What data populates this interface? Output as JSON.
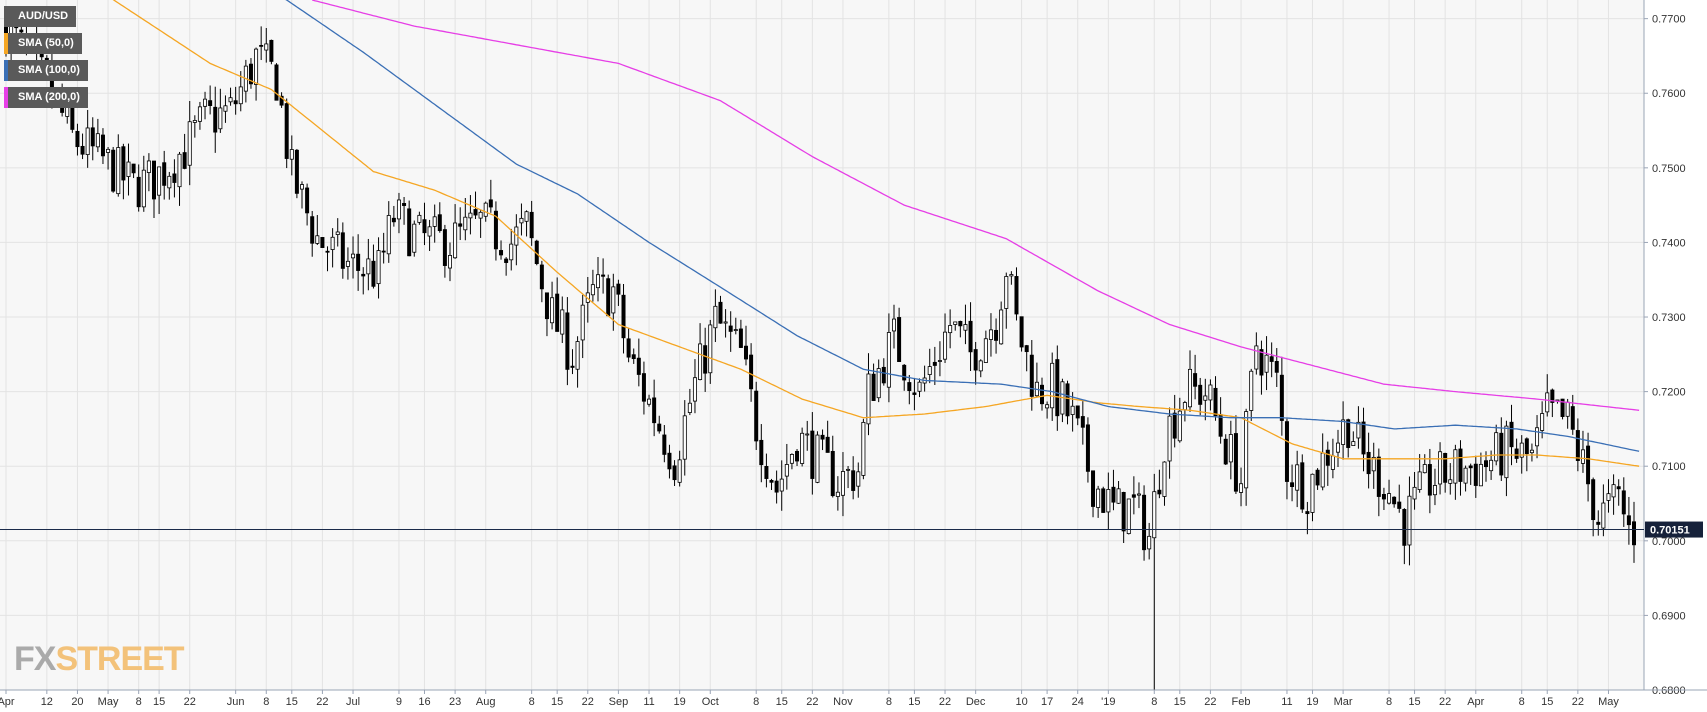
{
  "pair": "AUD/USD",
  "logo": {
    "part1": "FX",
    "part2": "STREET"
  },
  "legend": [
    {
      "label": "SMA (50,0)",
      "color": "#f5a623"
    },
    {
      "label": "SMA (100,0)",
      "color": "#3a6fb5"
    },
    {
      "label": "SMA (200,0)",
      "color": "#e63ee6"
    }
  ],
  "colors": {
    "background": "#f7f7f7",
    "grid": "#e3e3e3",
    "bull": "#ffffff",
    "bear": "#000000",
    "price_line": "#1a2a4a",
    "price_tag_bg": "#16213a"
  },
  "chart_data": {
    "type": "candlestick",
    "ylim": [
      0.68,
      0.7725
    ],
    "y_ticks": [
      0.77,
      0.76,
      0.75,
      0.74,
      0.73,
      0.72,
      0.71,
      0.7,
      0.69,
      0.68
    ],
    "y_tick_labels": [
      "0.7700",
      "0.7600",
      "0.7500",
      "0.7400",
      "0.7300",
      "0.7200",
      "0.7100",
      "0.7000",
      "0.6900",
      "0.6800"
    ],
    "current_price": 0.70151,
    "current_price_label": "0.70151",
    "x_labels": [
      "Apr",
      "12",
      "20",
      "May",
      "8",
      "15",
      "22",
      "Jun",
      "8",
      "15",
      "22",
      "Jul",
      "9",
      "16",
      "23",
      "Aug",
      "8",
      "15",
      "22",
      "Sep",
      "11",
      "19",
      "Oct",
      "8",
      "15",
      "22",
      "Nov",
      "8",
      "15",
      "22",
      "Dec",
      "10",
      "17",
      "24",
      "'19",
      "8",
      "15",
      "22",
      "Feb",
      "11",
      "19",
      "Mar",
      "8",
      "15",
      "22",
      "Apr",
      "8",
      "15",
      "22",
      "May"
    ],
    "x_label_bars": [
      0,
      8,
      14,
      20,
      26,
      30,
      36,
      45,
      51,
      56,
      62,
      68,
      77,
      82,
      88,
      94,
      103,
      108,
      114,
      120,
      126,
      132,
      138,
      147,
      152,
      158,
      164,
      173,
      178,
      184,
      190,
      199,
      204,
      210,
      216,
      225,
      230,
      236,
      242,
      251,
      256,
      262,
      271,
      276,
      282,
      288,
      297,
      302,
      308,
      314
    ],
    "n_bars": 320,
    "price_path": [
      [
        0,
        0.77
      ],
      [
        4,
        0.766
      ],
      [
        10,
        0.76
      ],
      [
        14,
        0.754
      ],
      [
        20,
        0.751
      ],
      [
        26,
        0.7475
      ],
      [
        30,
        0.7485
      ],
      [
        36,
        0.7525
      ],
      [
        40,
        0.7565
      ],
      [
        45,
        0.7575
      ],
      [
        50,
        0.7648
      ],
      [
        54,
        0.762
      ],
      [
        57,
        0.749
      ],
      [
        62,
        0.7405
      ],
      [
        68,
        0.737
      ],
      [
        74,
        0.736
      ],
      [
        77,
        0.7435
      ],
      [
        82,
        0.7405
      ],
      [
        88,
        0.74
      ],
      [
        94,
        0.7425
      ],
      [
        100,
        0.74
      ],
      [
        103,
        0.742
      ],
      [
        108,
        0.73
      ],
      [
        112,
        0.725
      ],
      [
        116,
        0.733
      ],
      [
        120,
        0.7335
      ],
      [
        123,
        0.7245
      ],
      [
        128,
        0.717
      ],
      [
        132,
        0.711
      ],
      [
        136,
        0.721
      ],
      [
        140,
        0.7295
      ],
      [
        145,
        0.725
      ],
      [
        148,
        0.7155
      ],
      [
        152,
        0.707
      ],
      [
        156,
        0.714
      ],
      [
        160,
        0.711
      ],
      [
        164,
        0.708
      ],
      [
        168,
        0.7095
      ],
      [
        170,
        0.72
      ],
      [
        175,
        0.727
      ],
      [
        180,
        0.72
      ],
      [
        186,
        0.729
      ],
      [
        190,
        0.725
      ],
      [
        195,
        0.73
      ],
      [
        197,
        0.737
      ],
      [
        199,
        0.729
      ],
      [
        203,
        0.72
      ],
      [
        206,
        0.7205
      ],
      [
        210,
        0.716
      ],
      [
        214,
        0.708
      ],
      [
        218,
        0.704
      ],
      [
        222,
        0.7045
      ],
      [
        225,
        0.7005
      ],
      [
        228,
        0.714
      ],
      [
        232,
        0.72
      ],
      [
        236,
        0.72
      ],
      [
        240,
        0.713
      ],
      [
        243,
        0.708
      ],
      [
        246,
        0.7265
      ],
      [
        250,
        0.721
      ],
      [
        252,
        0.71
      ],
      [
        256,
        0.707
      ],
      [
        260,
        0.712
      ],
      [
        264,
        0.716
      ],
      [
        267,
        0.711
      ],
      [
        271,
        0.708
      ],
      [
        275,
        0.7025
      ],
      [
        280,
        0.708
      ],
      [
        285,
        0.7095
      ],
      [
        290,
        0.71
      ],
      [
        295,
        0.712
      ],
      [
        300,
        0.711
      ],
      [
        303,
        0.717
      ],
      [
        307,
        0.716
      ],
      [
        310,
        0.71
      ],
      [
        313,
        0.703
      ],
      [
        317,
        0.7055
      ],
      [
        319,
        0.7015
      ]
    ],
    "spike_low": {
      "bar": 225,
      "price": 0.68
    },
    "sma_50_path": [
      [
        0,
        0.778
      ],
      [
        20,
        0.773
      ],
      [
        40,
        0.764
      ],
      [
        52,
        0.7605
      ],
      [
        62,
        0.755
      ],
      [
        72,
        0.7495
      ],
      [
        84,
        0.747
      ],
      [
        96,
        0.7435
      ],
      [
        108,
        0.736
      ],
      [
        120,
        0.729
      ],
      [
        132,
        0.726
      ],
      [
        144,
        0.723
      ],
      [
        156,
        0.719
      ],
      [
        168,
        0.7165
      ],
      [
        180,
        0.717
      ],
      [
        192,
        0.718
      ],
      [
        204,
        0.7195
      ],
      [
        214,
        0.7185
      ],
      [
        222,
        0.718
      ],
      [
        232,
        0.7175
      ],
      [
        242,
        0.7165
      ],
      [
        252,
        0.713
      ],
      [
        262,
        0.711
      ],
      [
        272,
        0.711
      ],
      [
        282,
        0.711
      ],
      [
        292,
        0.7115
      ],
      [
        300,
        0.7115
      ],
      [
        310,
        0.711
      ],
      [
        320,
        0.71
      ]
    ],
    "sma_100_path": [
      [
        40,
        0.778
      ],
      [
        55,
        0.7725
      ],
      [
        70,
        0.7655
      ],
      [
        85,
        0.758
      ],
      [
        100,
        0.7505
      ],
      [
        112,
        0.7465
      ],
      [
        126,
        0.74
      ],
      [
        140,
        0.734
      ],
      [
        155,
        0.7275
      ],
      [
        168,
        0.723
      ],
      [
        180,
        0.7215
      ],
      [
        195,
        0.721
      ],
      [
        205,
        0.72
      ],
      [
        216,
        0.718
      ],
      [
        228,
        0.717
      ],
      [
        240,
        0.7165
      ],
      [
        250,
        0.7165
      ],
      [
        262,
        0.716
      ],
      [
        272,
        0.715
      ],
      [
        284,
        0.7155
      ],
      [
        296,
        0.715
      ],
      [
        306,
        0.714
      ],
      [
        320,
        0.712
      ]
    ],
    "sma_200_path": [
      [
        60,
        0.7725
      ],
      [
        80,
        0.769
      ],
      [
        100,
        0.7665
      ],
      [
        120,
        0.764
      ],
      [
        140,
        0.759
      ],
      [
        158,
        0.7515
      ],
      [
        176,
        0.745
      ],
      [
        196,
        0.7405
      ],
      [
        214,
        0.7335
      ],
      [
        228,
        0.729
      ],
      [
        242,
        0.726
      ],
      [
        256,
        0.7235
      ],
      [
        270,
        0.721
      ],
      [
        284,
        0.72
      ],
      [
        300,
        0.719
      ],
      [
        320,
        0.7175
      ]
    ]
  }
}
